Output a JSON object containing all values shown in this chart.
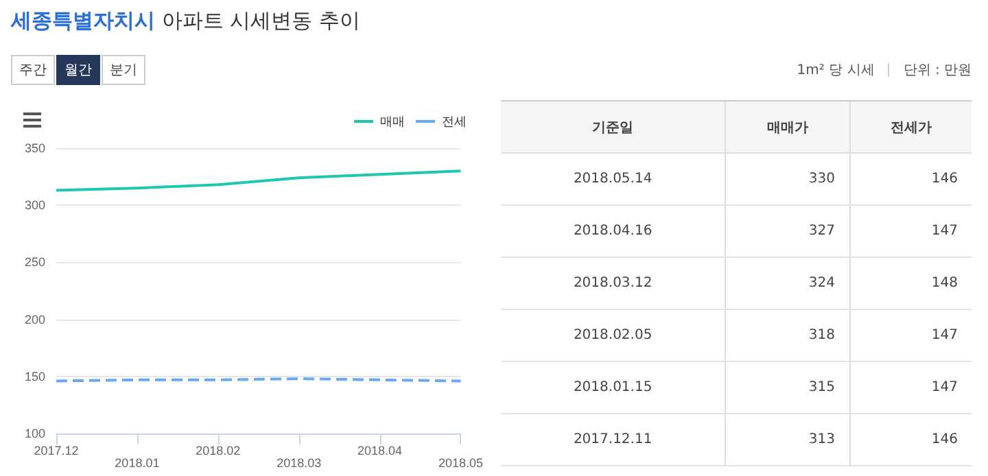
{
  "chart_data": {
    "type": "line",
    "title": "세종특별자치시 아파트 시세변동 추이",
    "categories": [
      "2017.12",
      "2018.01",
      "2018.02",
      "2018.03",
      "2018.04",
      "2018.05"
    ],
    "series": [
      {
        "name": "매매",
        "color": "#1fc7b0",
        "line_style": "solid",
        "values": [
          313,
          315,
          318,
          324,
          327,
          330
        ]
      },
      {
        "name": "전세",
        "color": "#6aa8f2",
        "line_style": "dashed",
        "values": [
          146,
          147,
          147,
          148,
          147,
          146
        ]
      }
    ],
    "ylim": [
      100,
      350
    ],
    "yticks": [
      100,
      150,
      200,
      250,
      300,
      350
    ],
    "grid": "y",
    "legend": "top right",
    "marker": "none",
    "annotations": [
      "주간",
      "월간",
      "분기",
      "1m² 당 시세",
      "단위 : 만원",
      "기준일",
      "매매가",
      "전세가",
      "2018.05.14",
      "330",
      "146",
      "2018.04.16",
      "327",
      "147",
      "2018.03.12",
      "324",
      "148",
      "2018.02.05",
      "318",
      "147",
      "2018.01.15",
      "315",
      "147",
      "2017.12.11",
      "313",
      "146"
    ]
  }
}
